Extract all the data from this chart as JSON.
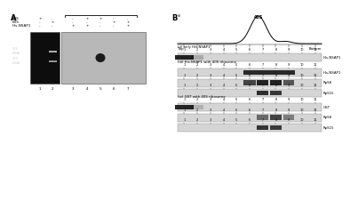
{
  "panel_A": {
    "label": "A",
    "rows": {
      "40S": [
        "+",
        "-",
        "-",
        "+",
        "+",
        "-",
        "-"
      ],
      "60S": [
        "-",
        "+",
        "-",
        "-",
        "-",
        "+",
        "+"
      ],
      "His-NSAP1": [
        "-",
        "-",
        "+",
        "+",
        "-",
        "-",
        "+"
      ]
    },
    "lane_nums": [
      1,
      2,
      3,
      4,
      5,
      6,
      7
    ],
    "gel_left_bg": "#0a0a0a",
    "gel_right_bg": "#b0b0b0",
    "rna_labels": [
      "28S\nrRNA",
      "18S\nrRNA"
    ],
    "spot_lane_idx": 4
  },
  "panel_B": {
    "label": "B",
    "sub_labels": [
      "(i)",
      "(ii) only His-NSAP1",
      "(iii) His-NSAP1 with 40S ribosome",
      "(iv) GST with 40S ribosome"
    ],
    "peak_label": "40S",
    "x_label_left": "Top",
    "x_label_right": "Bottom",
    "lane_nums": [
      1,
      2,
      3,
      4,
      5,
      6,
      7,
      8,
      9,
      10,
      11
    ],
    "blot_labels_ii": [
      "His-NSAP1"
    ],
    "blot_labels_iii": [
      "His-NSAP1",
      "RpS8",
      "RpS15"
    ],
    "blot_labels_iv": [
      "GST",
      "RpS8",
      "RpS15"
    ]
  }
}
